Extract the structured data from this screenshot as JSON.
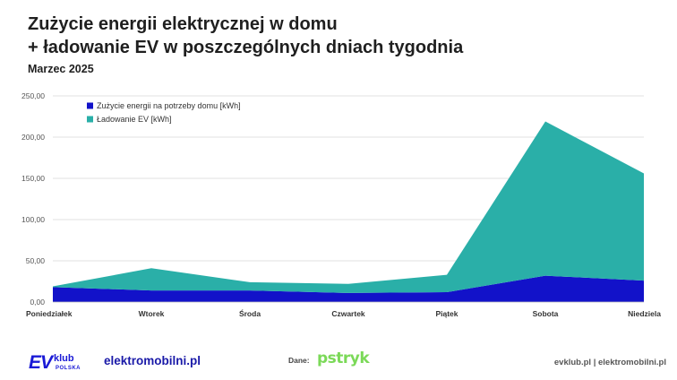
{
  "header": {
    "title_line1": "Zużycie energii elektrycznej w domu",
    "title_line2": "+ ładowanie EV w poszczególnych dniach tygodnia",
    "subtitle": "Marzec 2025"
  },
  "chart_data": {
    "type": "area",
    "stacked": true,
    "categories": [
      "Poniedziałek",
      "Wtorek",
      "Środa",
      "Czwartek",
      "Piątek",
      "Sobota",
      "Niedziela"
    ],
    "series": [
      {
        "name": "Zużycie energii na potrzeby domu [kWh]",
        "color": "#1212c9",
        "values": [
          18,
          14,
          14,
          11,
          12,
          32,
          26
        ]
      },
      {
        "name": "Ładowanie EV [kWh]",
        "color": "#2aafa8",
        "values": [
          1,
          27,
          10,
          11,
          21,
          187,
          130
        ]
      }
    ],
    "y_ticks": [
      "0,00",
      "50,00",
      "100,00",
      "150,00",
      "200,00",
      "250,00"
    ],
    "ylim": [
      0,
      250
    ],
    "grid": true,
    "legend_position": "top-left"
  },
  "footer": {
    "logo_ev": "EV",
    "logo_klub": "klub",
    "logo_polska": "POLSKA",
    "elektromobilni": "elektromobilni.pl",
    "dane_label": "Dane:",
    "pstryk": "pstryk",
    "sites": "evklub.pl | elektromobilni.pl"
  }
}
